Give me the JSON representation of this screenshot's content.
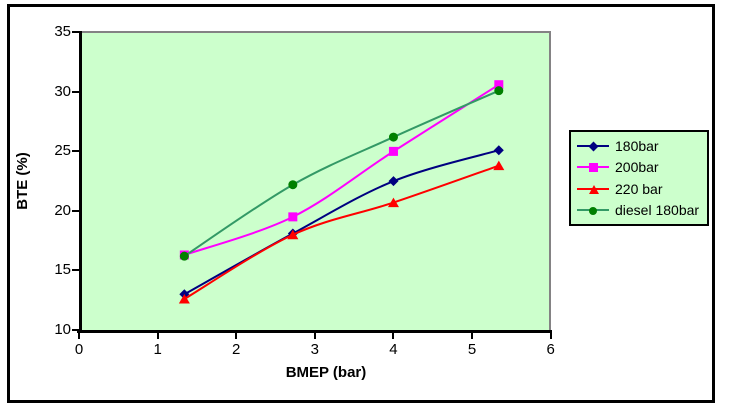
{
  "figure": {
    "frame_border_color": "#000000",
    "background_color": "#ffffff",
    "plot_background_color": "#ccffcc",
    "plot_edge_color": "#848284"
  },
  "chart_data": {
    "type": "line",
    "title": "",
    "xlabel": "BMEP (bar)",
    "ylabel": "BTE (%)",
    "xlim": [
      0,
      6
    ],
    "ylim": [
      10,
      35
    ],
    "x_ticks": [
      0,
      1,
      2,
      3,
      4,
      5,
      6
    ],
    "y_ticks": [
      10,
      15,
      20,
      25,
      30,
      35
    ],
    "grid": false,
    "line_style": "smooth",
    "legend_position": "right",
    "x": [
      1.34,
      2.72,
      4.0,
      5.34
    ],
    "series": [
      {
        "name": "180bar",
        "marker": "diamond",
        "color": "#000080",
        "marker_color": "#000080",
        "values": [
          13.0,
          18.1,
          22.5,
          25.1
        ]
      },
      {
        "name": "200bar",
        "marker": "square",
        "color": "#ff00ff",
        "marker_color": "#ff00ff",
        "values": [
          16.3,
          19.5,
          25.0,
          30.6
        ]
      },
      {
        "name": "220 bar",
        "marker": "triangle",
        "color": "#ff0000",
        "marker_color": "#ff0000",
        "values": [
          12.6,
          18.0,
          20.7,
          23.8
        ]
      },
      {
        "name": "diesel 180bar",
        "marker": "circle",
        "color": "#339966",
        "marker_color": "#008000",
        "values": [
          16.2,
          22.2,
          26.2,
          30.1
        ]
      }
    ]
  }
}
